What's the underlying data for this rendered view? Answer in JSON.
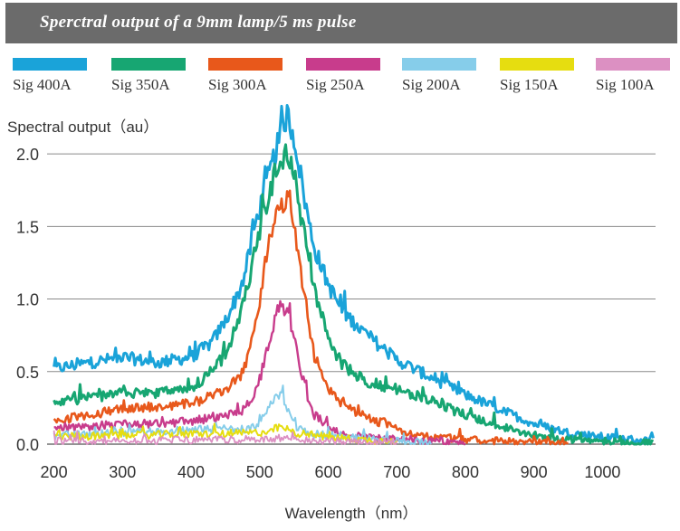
{
  "chart_data": {
    "type": "line",
    "title": "Sperctral output of a 9mm lamp/5 ms pulse",
    "ylabel": "Spectral output（au）",
    "xlabel": "Wavelength（nm）",
    "xlim": [
      190,
      1080
    ],
    "ylim": [
      0,
      2.25
    ],
    "x_ticks": [
      "200",
      "300",
      "400",
      "500",
      "600",
      "700",
      "800",
      "900",
      "1000"
    ],
    "y_ticks": [
      "0.0",
      "0.5",
      "1.0",
      "1.5",
      "2.0"
    ],
    "grid": "horizontal",
    "legend_position": "top",
    "series": [
      {
        "name": "Sig 400A",
        "color": "#1aa3d9",
        "x": [
          200,
          250,
          300,
          350,
          400,
          430,
          450,
          470,
          480,
          490,
          500,
          510,
          520,
          530,
          540,
          550,
          560,
          570,
          580,
          600,
          620,
          650,
          700,
          750,
          800,
          850,
          900,
          950,
          1000,
          1050,
          1075
        ],
        "y": [
          0.52,
          0.56,
          0.6,
          0.56,
          0.6,
          0.7,
          0.85,
          1.05,
          1.2,
          1.45,
          1.62,
          1.8,
          1.96,
          2.12,
          2.27,
          2.12,
          1.85,
          1.57,
          1.35,
          1.1,
          0.92,
          0.78,
          0.58,
          0.46,
          0.34,
          0.24,
          0.14,
          0.08,
          0.05,
          0.03,
          0.02
        ]
      },
      {
        "name": "Sig 350A",
        "color": "#17a672",
        "x": [
          200,
          250,
          300,
          350,
          400,
          430,
          450,
          470,
          480,
          490,
          500,
          510,
          520,
          530,
          540,
          550,
          560,
          570,
          580,
          600,
          620,
          650,
          700,
          750,
          800,
          850,
          900,
          950,
          1000,
          1050,
          1075
        ],
        "y": [
          0.29,
          0.32,
          0.35,
          0.35,
          0.38,
          0.5,
          0.62,
          0.85,
          1.05,
          1.25,
          1.48,
          1.65,
          1.83,
          1.95,
          2.03,
          1.9,
          1.58,
          1.3,
          1.05,
          0.73,
          0.55,
          0.44,
          0.38,
          0.3,
          0.2,
          0.12,
          0.06,
          0.03,
          0.02,
          0.01,
          0.01
        ]
      },
      {
        "name": "Sig 300A",
        "color": "#e8581b",
        "x": [
          200,
          250,
          300,
          350,
          400,
          430,
          450,
          470,
          480,
          490,
          500,
          510,
          520,
          530,
          540,
          550,
          560,
          570,
          580,
          600,
          620,
          650,
          700,
          750,
          800,
          850,
          900,
          950
        ],
        "y": [
          0.16,
          0.2,
          0.24,
          0.26,
          0.28,
          0.33,
          0.38,
          0.46,
          0.55,
          0.72,
          0.95,
          1.3,
          1.5,
          1.62,
          1.67,
          1.5,
          1.18,
          0.9,
          0.6,
          0.38,
          0.28,
          0.2,
          0.1,
          0.05,
          0.03,
          0.02,
          0.01,
          0.01
        ]
      },
      {
        "name": "Sig 250A",
        "color": "#c83c8c",
        "x": [
          200,
          250,
          300,
          350,
          400,
          430,
          450,
          470,
          480,
          490,
          500,
          510,
          520,
          530,
          540,
          550,
          560,
          570,
          580,
          600,
          620,
          650,
          700,
          750,
          800
        ],
        "y": [
          0.1,
          0.12,
          0.14,
          0.14,
          0.16,
          0.18,
          0.2,
          0.22,
          0.26,
          0.3,
          0.45,
          0.62,
          0.82,
          0.97,
          0.92,
          0.75,
          0.5,
          0.33,
          0.2,
          0.12,
          0.08,
          0.05,
          0.03,
          0.02,
          0.01
        ]
      },
      {
        "name": "Sig 200A",
        "color": "#86cdea",
        "x": [
          200,
          300,
          400,
          450,
          480,
          500,
          510,
          520,
          530,
          540,
          550,
          560,
          580,
          620,
          650,
          700,
          750
        ],
        "y": [
          0.06,
          0.08,
          0.1,
          0.1,
          0.1,
          0.14,
          0.22,
          0.3,
          0.36,
          0.24,
          0.14,
          0.1,
          0.07,
          0.06,
          0.04,
          0.02,
          0.01
        ]
      },
      {
        "name": "Sig 150A",
        "color": "#e6dd10",
        "x": [
          200,
          300,
          400,
          450,
          500,
          520,
          530,
          540,
          550,
          600,
          650,
          700
        ],
        "y": [
          0.05,
          0.06,
          0.07,
          0.07,
          0.08,
          0.1,
          0.12,
          0.1,
          0.08,
          0.05,
          0.03,
          0.02
        ]
      },
      {
        "name": "Sig 100A",
        "color": "#dc90c2",
        "x": [
          200,
          300,
          400,
          450,
          500,
          530,
          550,
          600,
          650,
          700
        ],
        "y": [
          0.02,
          0.02,
          0.03,
          0.03,
          0.03,
          0.04,
          0.03,
          0.02,
          0.01,
          0.01
        ]
      }
    ]
  }
}
